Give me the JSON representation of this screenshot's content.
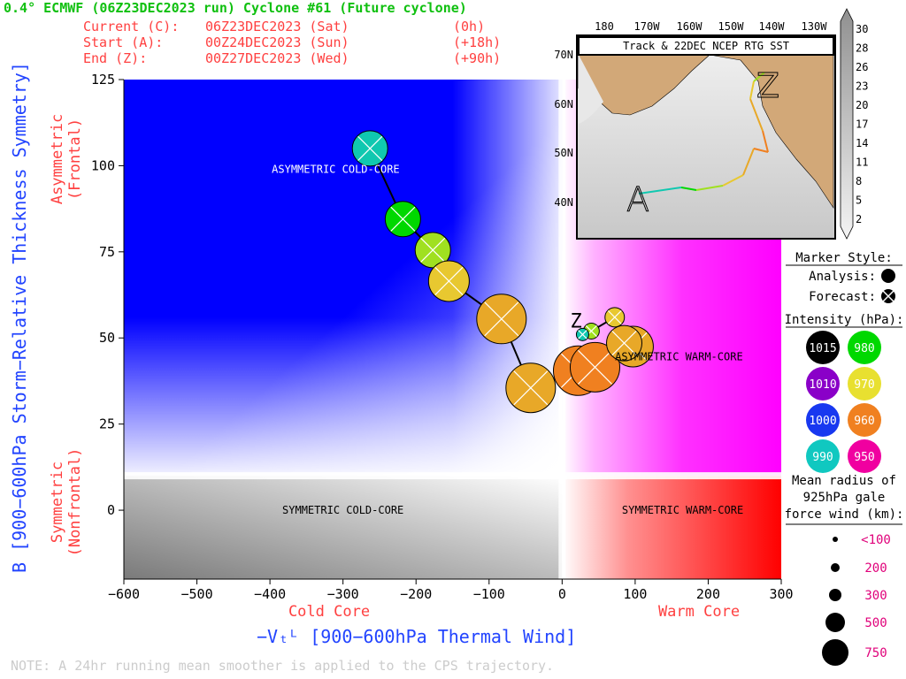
{
  "header": {
    "title": "0.4° ECMWF (06Z23DEC2023 run) Cyclone #61 (Future cyclone)",
    "current_label": "Current (C):",
    "current_value": "06Z23DEC2023 (Sat)",
    "current_offset": "(0h)",
    "start_label": "Start (A):",
    "start_value": "00Z24DEC2023 (Sun)",
    "start_offset": "(+18h)",
    "end_label": "End (Z):",
    "end_value": "00Z27DEC2023 (Wed)",
    "end_offset": "(+90h)"
  },
  "note": "NOTE:  A 24hr running mean smoother is applied to the CPS trajectory.",
  "chart_data": {
    "type": "scatter",
    "xlabel": "−Vₜᴸ [900−600hPa Thermal Wind]",
    "ylabel": "B [900−600hPa Storm−Relative Thickness Symmetry]",
    "xlim": [
      -600,
      300
    ],
    "ylim": [
      -20,
      125
    ],
    "xticks": [
      -600,
      -500,
      -400,
      -300,
      -200,
      -100,
      0,
      100,
      200,
      300
    ],
    "yticks": [
      0,
      25,
      50,
      75,
      100,
      125
    ],
    "x_low_label": "Cold Core",
    "x_high_label": "Warm Core",
    "y_high_label": [
      "Asymmetric",
      "(Frontal)"
    ],
    "y_low_label": [
      "Symmetric",
      "(Nonfrontal)"
    ],
    "region_labels": {
      "asym_cold": "ASYMMETRIC COLD-CORE",
      "asym_warm": "ASYMMETRIC WARM-CORE",
      "sym_cold": "SYMMETRIC COLD-CORE",
      "sym_warm": "SYMMETRIC WARM-CORE"
    },
    "start_marker": "A",
    "end_marker": "Z",
    "trajectory": [
      {
        "x": -263,
        "y": 105,
        "pressure": 990,
        "radius_km": 300
      },
      {
        "x": -218,
        "y": 84.5,
        "pressure": 980,
        "radius_km": 300
      },
      {
        "x": -177,
        "y": 75.5,
        "pressure": 975,
        "radius_km": 300
      },
      {
        "x": -155,
        "y": 66.5,
        "pressure": 970,
        "radius_km": 400
      },
      {
        "x": -83,
        "y": 55.5,
        "pressure": 965,
        "radius_km": 500
      },
      {
        "x": -43,
        "y": 35.5,
        "pressure": 965,
        "radius_km": 500
      },
      {
        "x": 22,
        "y": 40.5,
        "pressure": 960,
        "radius_km": 500
      },
      {
        "x": 45,
        "y": 41.5,
        "pressure": 960,
        "radius_km": 500
      },
      {
        "x": 97,
        "y": 47.5,
        "pressure": 962,
        "radius_km": 400
      },
      {
        "x": 85,
        "y": 48.5,
        "pressure": 965,
        "radius_km": 300
      },
      {
        "x": 72,
        "y": 56,
        "pressure": 970,
        "radius_km": 200
      },
      {
        "x": 40,
        "y": 52,
        "pressure": 978,
        "radius_km": 150
      },
      {
        "x": 28,
        "y": 51,
        "pressure": 990,
        "radius_km": 100
      }
    ]
  },
  "inset": {
    "title": "Track & 22DEC NCEP RTG SST",
    "lon_labels": [
      "180",
      "170W",
      "160W",
      "150W",
      "140W",
      "130W"
    ],
    "lat_labels": [
      "70N",
      "60N",
      "50N",
      "40N"
    ],
    "colorbar_ticks": [
      "30",
      "28",
      "26",
      "23",
      "20",
      "17",
      "14",
      "11",
      "8",
      "5",
      "2"
    ],
    "start_marker": "A",
    "end_marker": "Z"
  },
  "legend": {
    "marker_style_title": "Marker Style:",
    "analysis_label": "Analysis:",
    "forecast_label": "Forecast:",
    "intensity_title": "Intensity (hPa):",
    "intensity": [
      {
        "value": "1015",
        "color": "#000000",
        "text_color": "#ffffff"
      },
      {
        "value": "980",
        "color": "#00d800",
        "text_color": "#ffffff"
      },
      {
        "value": "1010",
        "color": "#8a00c8",
        "text_color": "#ffffff"
      },
      {
        "value": "970",
        "color": "#e8e030",
        "text_color": "#ffffff"
      },
      {
        "value": "1000",
        "color": "#1838f0",
        "text_color": "#ffffff"
      },
      {
        "value": "960",
        "color": "#f08020",
        "text_color": "#ffffff"
      },
      {
        "value": "990",
        "color": "#10c8c0",
        "text_color": "#ffffff"
      },
      {
        "value": "950",
        "color": "#f000a0",
        "text_color": "#ffffff"
      }
    ],
    "radius_title": [
      "Mean radius of",
      "925hPa gale",
      "force wind (km):"
    ],
    "radius": [
      "<100",
      "200",
      "300",
      "500",
      "750"
    ]
  },
  "colors": {
    "asym_cold": "#0000ff",
    "asym_warm": "#ff00ff",
    "sym_cold": "#808080",
    "sym_warm": "#ff0000",
    "label_red": "#ff4040",
    "axis_blue": "#2244ff",
    "title_green": "#10c010",
    "land": "#d2a878"
  }
}
